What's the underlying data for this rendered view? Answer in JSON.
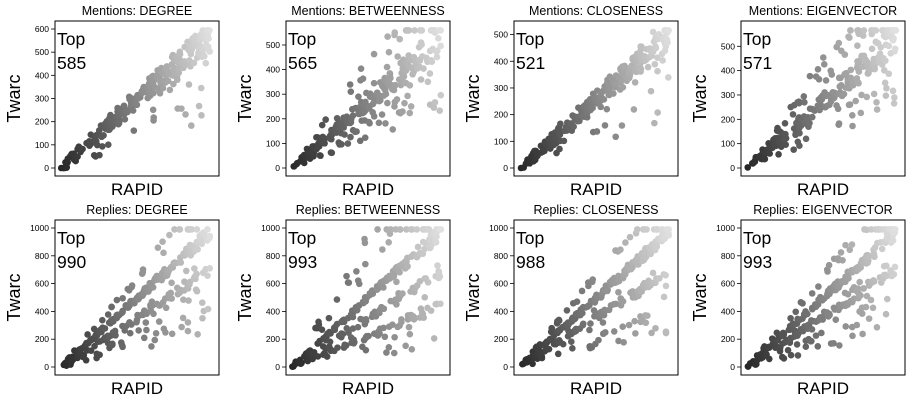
{
  "figure": {
    "xlabel": "RAPID",
    "ylabel": "Twarc",
    "top_label": "Top"
  },
  "chart_data": [
    {
      "type": "scatter",
      "title": "Mentions: DEGREE",
      "top_value": "585",
      "ylim": [
        0,
        600
      ],
      "yticks": [
        0,
        100,
        200,
        300,
        400,
        500,
        600
      ],
      "xlim": [
        0,
        600
      ],
      "xticks": [],
      "pattern": "diagonal",
      "grid": false
    },
    {
      "type": "scatter",
      "title": "Mentions: BETWEENNESS",
      "top_value": "565",
      "ylim": [
        0,
        565
      ],
      "yticks": [
        0,
        100,
        200,
        300,
        400,
        500
      ],
      "xlim": [
        0,
        565
      ],
      "xticks": [],
      "pattern": "wide",
      "grid": false
    },
    {
      "type": "scatter",
      "title": "Mentions: CLOSENESS",
      "top_value": "521",
      "ylim": [
        0,
        521
      ],
      "yticks": [
        0,
        100,
        200,
        300,
        400,
        500
      ],
      "xlim": [
        0,
        521
      ],
      "xticks": [],
      "pattern": "diagonal",
      "grid": false
    },
    {
      "type": "scatter",
      "title": "Mentions: EIGENVECTOR",
      "top_value": "571",
      "ylim": [
        0,
        571
      ],
      "yticks": [
        0,
        100,
        200,
        300,
        400,
        500
      ],
      "xlim": [
        0,
        571
      ],
      "xticks": [],
      "pattern": "wide",
      "grid": false
    },
    {
      "type": "scatter",
      "title": "Replies: DEGREE",
      "top_value": "990",
      "ylim": [
        0,
        1000
      ],
      "yticks": [
        0,
        200,
        400,
        600,
        800,
        1000
      ],
      "xlim": [
        0,
        990
      ],
      "xticks": [],
      "pattern": "fan",
      "grid": false
    },
    {
      "type": "scatter",
      "title": "Replies: BETWEENNESS",
      "top_value": "993",
      "ylim": [
        0,
        1000
      ],
      "yticks": [
        0,
        200,
        400,
        600,
        800,
        1000
      ],
      "xlim": [
        0,
        993
      ],
      "xticks": [],
      "pattern": "fan_wide",
      "grid": false
    },
    {
      "type": "scatter",
      "title": "Replies: CLOSENESS",
      "top_value": "988",
      "ylim": [
        0,
        1000
      ],
      "yticks": [
        0,
        200,
        400,
        600,
        800,
        1000
      ],
      "xlim": [
        0,
        988
      ],
      "xticks": [],
      "pattern": "fan",
      "grid": false
    },
    {
      "type": "scatter",
      "title": "Replies: EIGENVECTOR",
      "top_value": "993",
      "ylim": [
        0,
        1000
      ],
      "yticks": [
        0,
        200,
        400,
        600,
        800,
        1000
      ],
      "xlim": [
        0,
        993
      ],
      "xticks": [],
      "pattern": "fan",
      "grid": false
    }
  ]
}
